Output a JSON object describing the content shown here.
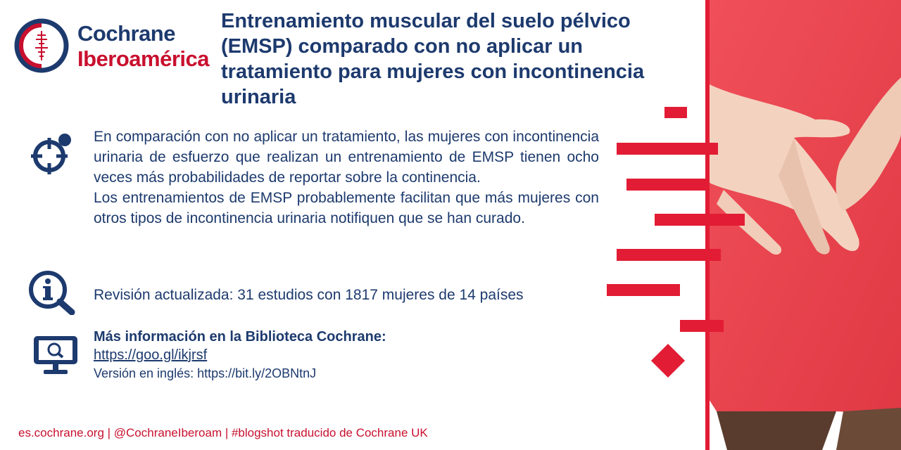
{
  "logo": {
    "line1": "Cochrane",
    "line2": "Iberoamérica"
  },
  "title": "Entrenamiento muscular del suelo pélvico (EMSP) comparado con no aplicar un tratamiento para mujeres con incontinencia urinaria",
  "summary": {
    "paragraph1": "En comparación con no aplicar un tratamiento, las mujeres con incontinencia urinaria de esfuerzo que realizan un entrenamiento de EMSP tienen ocho veces más probabilidades de reportar sobre la continencia.",
    "paragraph2": "Los entrenamientos de EMSP probablemente facilitan que más mujeres con otros tipos de incontinencia urinaria notifiquen que se han curado."
  },
  "review": "Revisión actualizada: 31 estudios con 1817 mujeres de 14 países",
  "more_info": {
    "heading": "Más información en la Biblioteca Cochrane:",
    "link": "https://goo.gl/ikjrsf",
    "english": "Versión en inglés: https://bit.ly/2OBNtnJ"
  },
  "footer": "es.cochrane.org | @CochraneIberoam | #blogshot traducido de Cochrane UK",
  "colors": {
    "navy": "#1d3a6e",
    "red": "#c8102e",
    "accent_red": "#e21c34"
  },
  "icons": [
    "target-search-icon",
    "info-magnifier-icon",
    "computer-search-icon"
  ]
}
